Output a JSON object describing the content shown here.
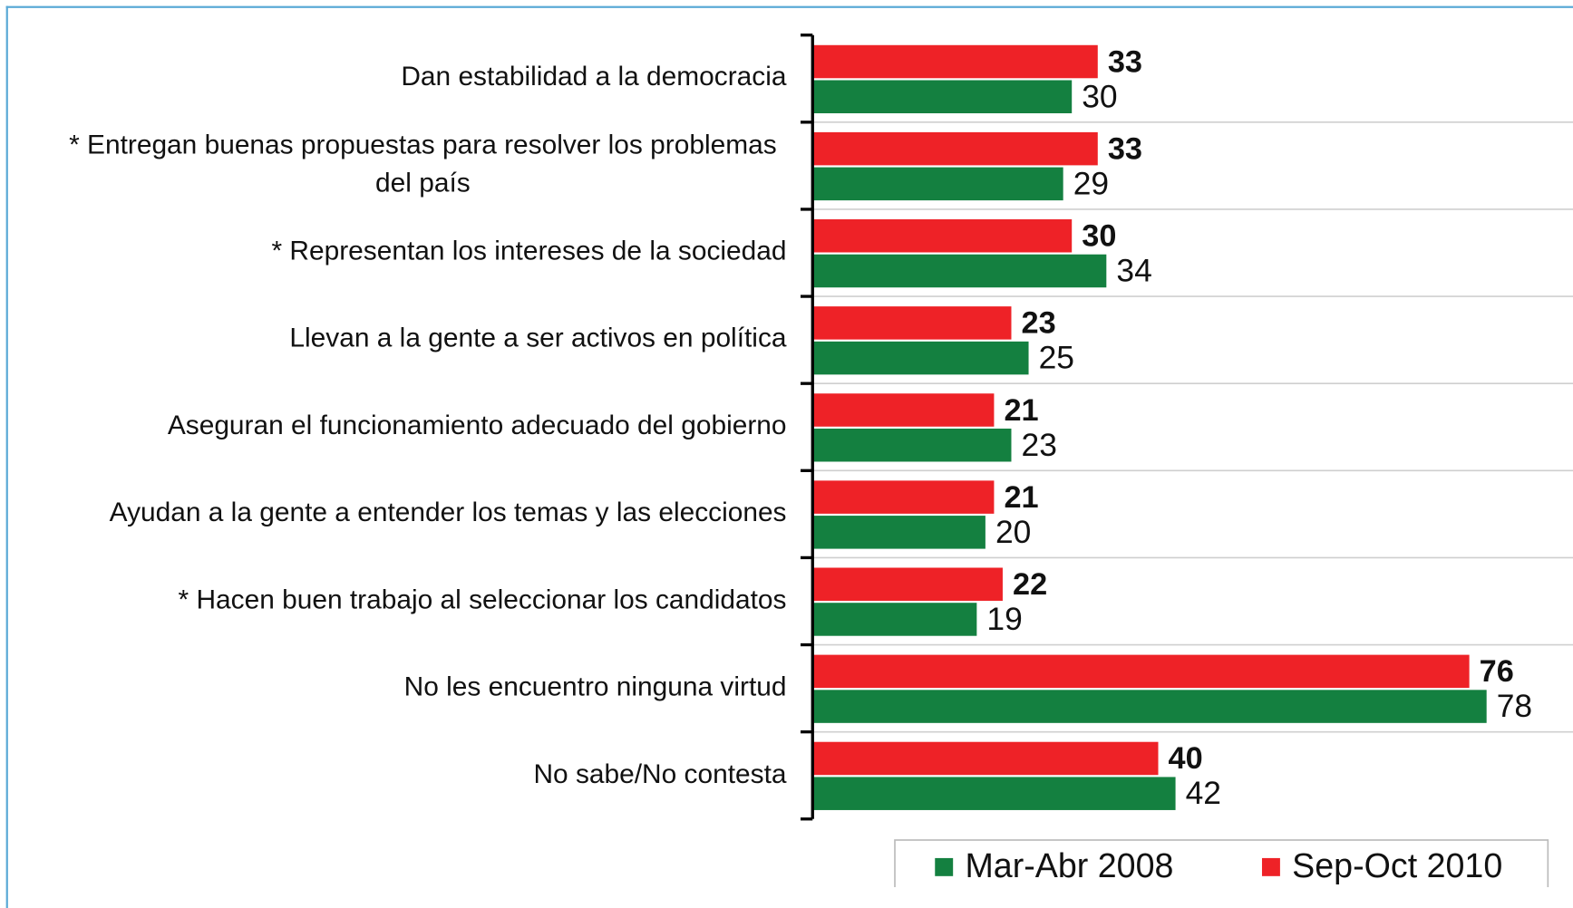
{
  "chart_data": {
    "type": "bar",
    "orientation": "horizontal",
    "categories": [
      "Dan estabilidad a la democracia",
      "* Entregan buenas propuestas para resolver los problemas del país",
      "* Representan los intereses de la sociedad",
      "Llevan a la gente a ser activos en política",
      "Aseguran el funcionamiento adecuado del gobierno",
      "Ayudan a la gente a entender los temas y las elecciones",
      "* Hacen buen trabajo al seleccionar los candidatos",
      "No les encuentro ninguna virtud",
      "No sabe/No contesta"
    ],
    "series": [
      {
        "name": "Mar-Abr 2008",
        "color": "#148040",
        "values": [
          30,
          29,
          34,
          25,
          23,
          20,
          19,
          78,
          42
        ]
      },
      {
        "name": "Sep-Oct 2010",
        "color": "#ee2227",
        "values": [
          33,
          33,
          30,
          23,
          21,
          21,
          22,
          76,
          40
        ]
      }
    ],
    "xlim": [
      0,
      88
    ],
    "grid": true,
    "legend": "bottom"
  }
}
